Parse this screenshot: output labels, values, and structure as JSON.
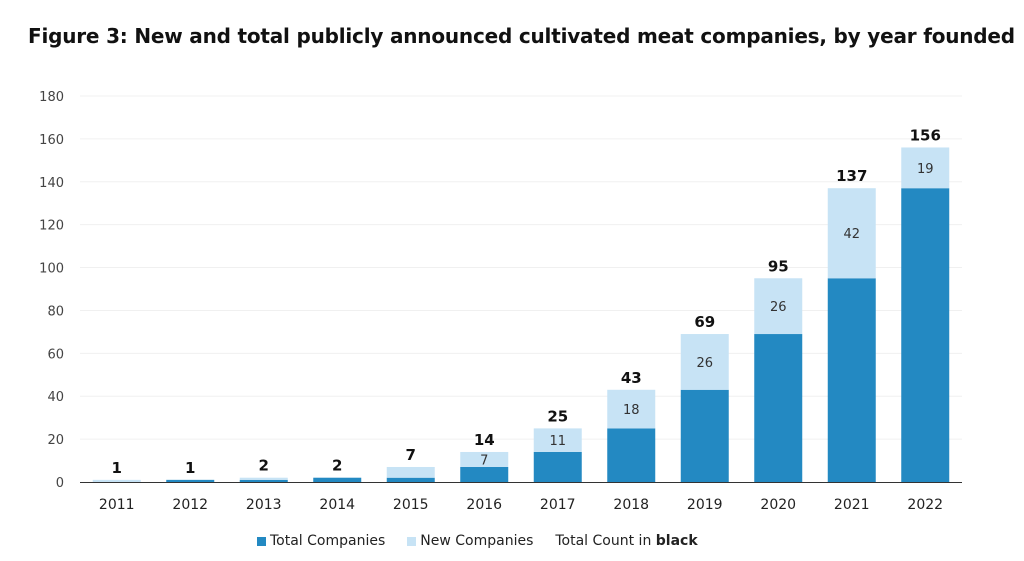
{
  "title": "Figure 3: New and total publicly announced cultivated meat companies, by year founded",
  "colors": {
    "total": "#2389C2",
    "new": "#C7E3F5",
    "grid": "#F0F0F0",
    "axis": "#333333"
  },
  "legend": {
    "total_label": "Total Companies",
    "new_label": "New Companies",
    "note_prefix": "Total Count in ",
    "note_bold": "black"
  },
  "chart_data": {
    "type": "bar",
    "stacked": true,
    "title": "Figure 3: New and total publicly announced cultivated meat companies, by year founded",
    "xlabel": "",
    "ylabel": "",
    "ylim": [
      0,
      180
    ],
    "yticks": [
      0,
      20,
      40,
      60,
      80,
      100,
      120,
      140,
      160,
      180
    ],
    "grid": true,
    "legend_position": "bottom",
    "categories": [
      "2011",
      "2012",
      "2013",
      "2014",
      "2015",
      "2016",
      "2017",
      "2018",
      "2019",
      "2020",
      "2021",
      "2022"
    ],
    "series": [
      {
        "name": "Total Companies",
        "values": [
          0,
          1,
          1,
          2,
          2,
          7,
          14,
          25,
          43,
          69,
          95,
          137
        ]
      },
      {
        "name": "New Companies",
        "values": [
          1,
          0,
          1,
          0,
          5,
          7,
          11,
          18,
          26,
          26,
          42,
          19
        ]
      }
    ],
    "new_labels": [
      "",
      "",
      "",
      "",
      "",
      "7",
      "11",
      "18",
      "26",
      "26",
      "42",
      "19"
    ],
    "totals": [
      1,
      1,
      2,
      2,
      7,
      14,
      25,
      43,
      69,
      95,
      137,
      156
    ]
  }
}
